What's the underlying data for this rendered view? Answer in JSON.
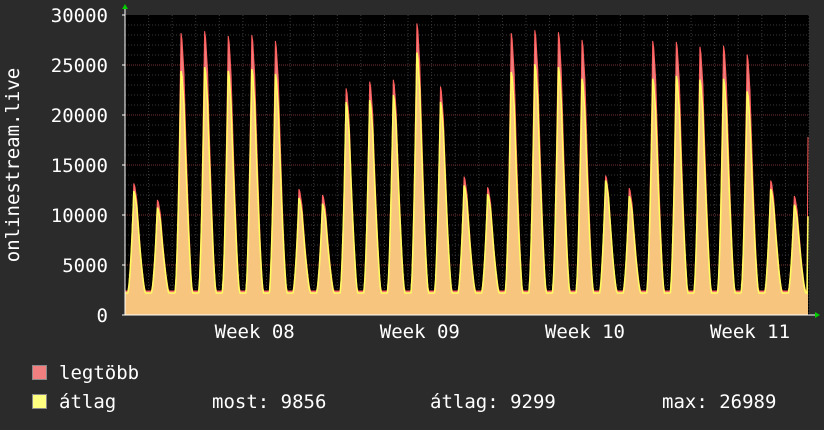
{
  "chart_data": {
    "type": "area",
    "ylabel": "onlinestream.live",
    "ylim": [
      0,
      30000
    ],
    "yticks": [
      0,
      5000,
      10000,
      15000,
      20000,
      25000,
      30000
    ],
    "xtick_labels": [
      "Week 08",
      "Week 09",
      "Week 10",
      "Week 11"
    ],
    "grid": true,
    "days": 29,
    "series": [
      {
        "name": "legtöbb",
        "color": "#f07f7f",
        "daily_peaks": [
          13500,
          11800,
          29000,
          29200,
          28700,
          28800,
          28200,
          12900,
          12300,
          23300,
          24000,
          24200,
          30000,
          23500,
          14200,
          13100,
          29000,
          29300,
          29100,
          28300,
          14300,
          13000,
          28200,
          28100,
          27600,
          27700,
          26800,
          13800,
          12200
        ],
        "final_value": 17800
      },
      {
        "name": "átlag",
        "color": "#ffff80",
        "daily_peaks": [
          12700,
          11000,
          25100,
          25500,
          25100,
          25300,
          24800,
          12000,
          11400,
          21900,
          22100,
          22600,
          27000,
          21900,
          13300,
          12400,
          25000,
          25800,
          25500,
          24300,
          13800,
          12200,
          24300,
          24600,
          24200,
          24300,
          23000,
          12900,
          11300
        ],
        "final_value": 9856
      }
    ]
  },
  "legend": {
    "max_label": "legtöbb",
    "avg_label": "átlag"
  },
  "stats": {
    "current": "most: 9856",
    "average": "átlag: 9299",
    "maximum": "max: 26989"
  }
}
